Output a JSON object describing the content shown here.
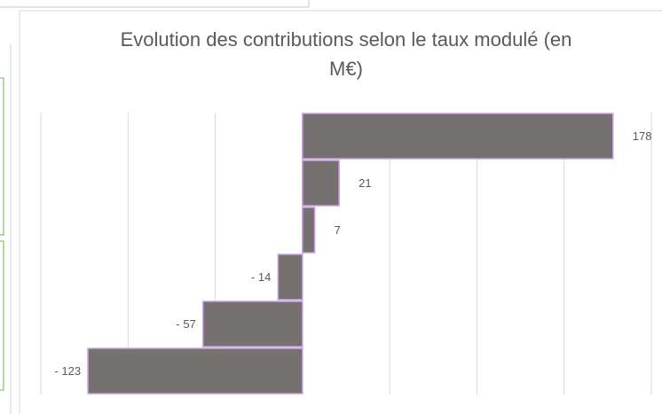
{
  "chart_data": {
    "type": "hbar",
    "title": "Evolution des contributions selon le taux modulé (en M€)",
    "categories": [
      null,
      null,
      null,
      null,
      null,
      null
    ],
    "values": [
      178,
      21,
      7,
      -14,
      -57,
      -123
    ],
    "value_labels": [
      "178",
      "21",
      "7",
      "- 14",
      "- 57",
      "- 123"
    ],
    "color": "#767171",
    "edge_color": "#c9a0dc",
    "xlim": [
      -150,
      200
    ],
    "xticks": [
      -150,
      -100,
      -50,
      0,
      50,
      100,
      150,
      200
    ],
    "grid": true
  }
}
